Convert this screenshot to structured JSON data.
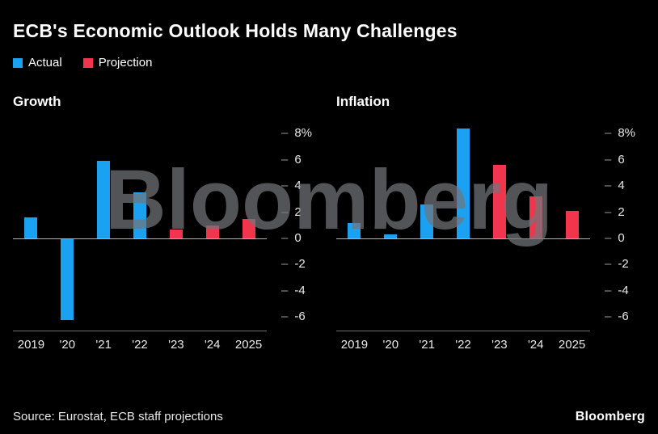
{
  "title": "ECB's Economic Outlook Holds Many Challenges",
  "watermark": "Bloomberg",
  "source": "Source: Eurostat, ECB staff projections",
  "logo": "Bloomberg",
  "colors": {
    "background": "#000000",
    "actual": "#1ba1f2",
    "projection": "#f0354c",
    "zero_line": "#b3b3b3",
    "axis_line": "#6e6e6e",
    "watermark": "#72757b"
  },
  "legend": [
    {
      "label": "Actual",
      "color": "#1ba1f2"
    },
    {
      "label": "Projection",
      "color": "#f0354c"
    }
  ],
  "chart_data": [
    {
      "type": "bar",
      "title": "Growth",
      "categories": [
        "2019",
        "'20",
        "'21",
        "'22",
        "'23",
        "'24",
        "2025"
      ],
      "series": [
        {
          "name": "Actual",
          "color": "#1ba1f2",
          "values": [
            1.6,
            -6.2,
            5.9,
            3.5,
            null,
            null,
            null
          ]
        },
        {
          "name": "Projection",
          "color": "#f0354c",
          "values": [
            null,
            null,
            null,
            null,
            0.7,
            1.0,
            1.5
          ]
        }
      ],
      "ylim": [
        -7,
        9
      ],
      "grid": false,
      "legend_position": "top-left",
      "y_ticks": [
        {
          "value": 8,
          "label": "8%"
        },
        {
          "value": 6,
          "label": "6"
        },
        {
          "value": 4,
          "label": "4"
        },
        {
          "value": 2,
          "label": "2"
        },
        {
          "value": 0,
          "label": "0"
        },
        {
          "value": -2,
          "label": "-2"
        },
        {
          "value": -4,
          "label": "-4"
        },
        {
          "value": -6,
          "label": "-6"
        }
      ]
    },
    {
      "type": "bar",
      "title": "Inflation",
      "categories": [
        "2019",
        "'20",
        "'21",
        "'22",
        "'23",
        "'24",
        "2025"
      ],
      "series": [
        {
          "name": "Actual",
          "color": "#1ba1f2",
          "values": [
            1.2,
            0.3,
            2.6,
            8.4,
            null,
            null,
            null
          ]
        },
        {
          "name": "Projection",
          "color": "#f0354c",
          "values": [
            null,
            null,
            null,
            null,
            5.6,
            3.2,
            2.1
          ]
        }
      ],
      "ylim": [
        -7,
        9
      ],
      "grid": false,
      "legend_position": "top-left",
      "y_ticks": [
        {
          "value": 8,
          "label": "8%"
        },
        {
          "value": 6,
          "label": "6"
        },
        {
          "value": 4,
          "label": "4"
        },
        {
          "value": 2,
          "label": "2"
        },
        {
          "value": 0,
          "label": "0"
        },
        {
          "value": -2,
          "label": "-2"
        },
        {
          "value": -4,
          "label": "-4"
        },
        {
          "value": -6,
          "label": "-6"
        }
      ]
    }
  ]
}
